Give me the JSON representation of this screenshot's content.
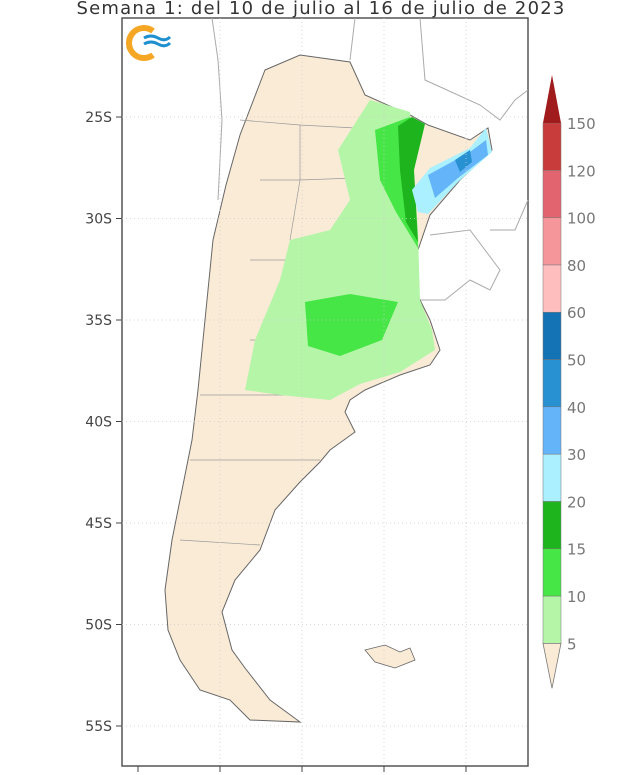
{
  "title": "Semana 1: del 10 de julio al 16 de julio de 2023",
  "map": {
    "region": "Argentina",
    "land_color": "#faebd7",
    "border_color": "#888888",
    "lat_ticks": [
      "25S",
      "30S",
      "35S",
      "40S",
      "45S",
      "50S",
      "55S"
    ]
  },
  "logo": {
    "colors": [
      "#f5a623",
      "#1e8fcf"
    ]
  },
  "colorbar": {
    "levels": [
      "5",
      "10",
      "15",
      "20",
      "30",
      "40",
      "50",
      "60",
      "80",
      "100",
      "120",
      "150"
    ],
    "colors": [
      "#faebd7",
      "#b4f5a8",
      "#46e646",
      "#1eb41e",
      "#aaf0ff",
      "#64b4fa",
      "#2891d2",
      "#1473b4",
      "#ffbebe",
      "#f5969b",
      "#e1646e",
      "#c83c3c",
      "#a01c1c"
    ]
  },
  "precip_areas": [
    {
      "range": "5-10",
      "color": "#b4f5a8"
    },
    {
      "range": "10-15",
      "color": "#46e646"
    },
    {
      "range": "15-20",
      "color": "#1eb41e"
    },
    {
      "range": "20-30",
      "color": "#aaf0ff"
    },
    {
      "range": "30-40",
      "color": "#64b4fa"
    },
    {
      "range": "40-50",
      "color": "#2891d2"
    }
  ]
}
